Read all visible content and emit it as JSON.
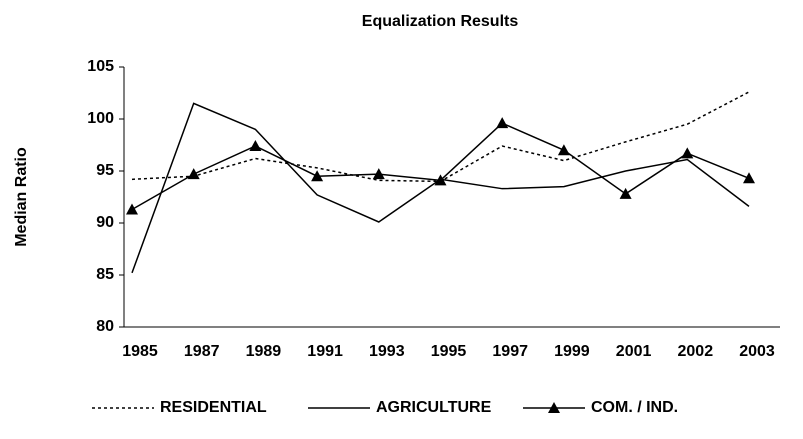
{
  "chart_data": {
    "type": "line",
    "title": "Equalization Results",
    "ylabel": "Median Ratio",
    "categories": [
      "1985",
      "1987",
      "1989",
      "1991",
      "1993",
      "1995",
      "1997",
      "1999",
      "2001",
      "2002",
      "2003"
    ],
    "series": [
      {
        "name": "RESIDENTIAL",
        "color": "#000000",
        "dash": "dotted",
        "values": [
          94.2,
          94.5,
          96.2,
          95.3,
          94.1,
          94.0,
          97.4,
          96.0,
          97.8,
          99.5,
          102.6
        ]
      },
      {
        "name": "AGRICULTURE",
        "color": "#000000",
        "dash": "solid",
        "values": [
          85.2,
          101.5,
          99.0,
          92.7,
          90.1,
          94.2,
          93.3,
          93.5,
          95.0,
          96.1,
          91.6
        ]
      },
      {
        "name": "COM. / IND.",
        "color": "#000000",
        "dash": "solid",
        "marker": "triangle",
        "values": [
          91.3,
          94.7,
          97.4,
          94.5,
          94.7,
          94.1,
          99.6,
          97.0,
          92.8,
          96.7,
          94.3
        ]
      }
    ],
    "ylim": [
      80,
      105
    ],
    "yticks": [
      80,
      85,
      90,
      95,
      100,
      105
    ],
    "grid": false,
    "legend": "bottom"
  }
}
